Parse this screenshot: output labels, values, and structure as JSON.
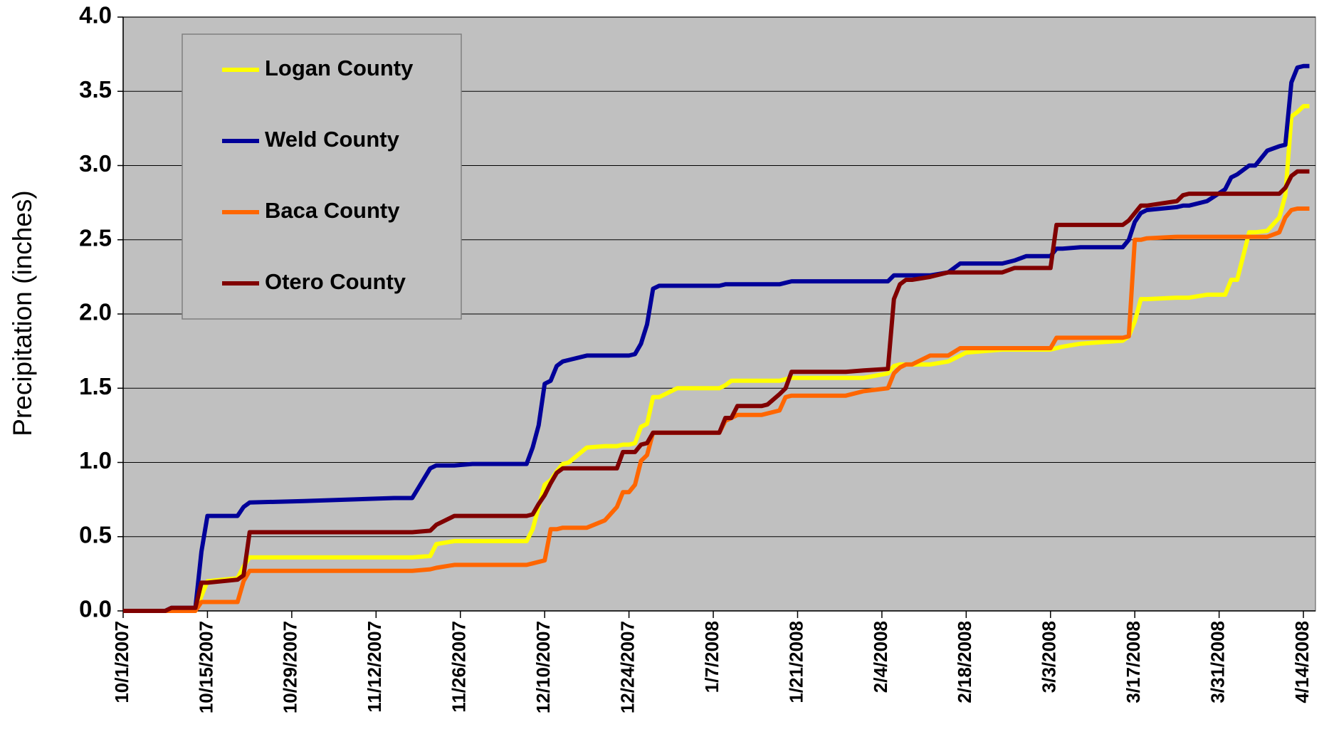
{
  "chart_data": {
    "type": "line",
    "ylabel": "Precipitation (inches)",
    "x": [
      "10/1/2007",
      "10/8/2007",
      "10/9/2007",
      "10/13/2007",
      "10/14/2007",
      "10/15/2007",
      "10/20/2007",
      "10/21/2007",
      "10/22/2007",
      "10/31/2007",
      "11/15/2007",
      "11/18/2007",
      "11/21/2007",
      "11/22/2007",
      "11/25/2007",
      "11/28/2007",
      "12/7/2007",
      "12/8/2007",
      "12/9/2007",
      "12/10/2007",
      "12/11/2007",
      "12/12/2007",
      "12/13/2007",
      "12/14/2007",
      "12/17/2007",
      "12/20/2007",
      "12/22/2007",
      "12/23/2007",
      "12/24/2007",
      "12/25/2007",
      "12/26/2007",
      "12/27/2007",
      "12/28/2007",
      "12/29/2007",
      "1/1/2008",
      "1/8/2008",
      "1/9/2008",
      "1/10/2008",
      "1/11/2008",
      "1/15/2008",
      "1/16/2008",
      "1/18/2008",
      "1/19/2008",
      "1/20/2008",
      "1/22/2008",
      "1/29/2008",
      "2/1/2008",
      "2/5/2008",
      "2/6/2008",
      "2/7/2008",
      "2/8/2008",
      "2/9/2008",
      "2/12/2008",
      "2/15/2008",
      "2/17/2008",
      "2/18/2008",
      "2/21/2008",
      "2/24/2008",
      "2/26/2008",
      "2/28/2008",
      "3/3/2008",
      "3/4/2008",
      "3/5/2008",
      "3/8/2008",
      "3/15/2008",
      "3/16/2008",
      "3/17/2008",
      "3/18/2008",
      "3/19/2008",
      "3/24/2008",
      "3/25/2008",
      "3/26/2008",
      "3/29/2008",
      "4/1/2008",
      "4/2/2008",
      "4/3/2008",
      "4/5/2008",
      "4/6/2008",
      "4/8/2008",
      "4/10/2008",
      "4/11/2008",
      "4/12/2008",
      "4/13/2008",
      "4/14/2008",
      "4/15/2008"
    ],
    "series": [
      {
        "name": "Logan County",
        "color": "#ffff00",
        "values": [
          0,
          0,
          0,
          0,
          0.1,
          0.2,
          0.22,
          0.3,
          0.36,
          0.36,
          0.36,
          0.36,
          0.37,
          0.45,
          0.47,
          0.47,
          0.47,
          0.55,
          0.7,
          0.85,
          0.88,
          0.94,
          0.99,
          1.0,
          1.1,
          1.11,
          1.11,
          1.12,
          1.12,
          1.13,
          1.24,
          1.26,
          1.44,
          1.44,
          1.5,
          1.5,
          1.52,
          1.55,
          1.55,
          1.55,
          1.55,
          1.55,
          1.56,
          1.57,
          1.57,
          1.57,
          1.57,
          1.6,
          1.65,
          1.66,
          1.66,
          1.66,
          1.66,
          1.68,
          1.72,
          1.74,
          1.75,
          1.76,
          1.76,
          1.76,
          1.76,
          1.77,
          1.78,
          1.8,
          1.82,
          1.85,
          1.95,
          2.1,
          2.1,
          2.11,
          2.11,
          2.11,
          2.13,
          2.13,
          2.23,
          2.23,
          2.55,
          2.55,
          2.56,
          2.65,
          2.8,
          3.33,
          3.36,
          3.4,
          3.4
        ]
      },
      {
        "name": "Weld County",
        "color": "#000099",
        "values": [
          0,
          0,
          0.02,
          0.02,
          0.4,
          0.64,
          0.64,
          0.7,
          0.73,
          0.74,
          0.76,
          0.76,
          0.96,
          0.98,
          0.98,
          0.99,
          0.99,
          1.1,
          1.25,
          1.53,
          1.55,
          1.65,
          1.68,
          1.69,
          1.72,
          1.72,
          1.72,
          1.72,
          1.72,
          1.73,
          1.8,
          1.93,
          2.17,
          2.19,
          2.19,
          2.19,
          2.2,
          2.2,
          2.2,
          2.2,
          2.2,
          2.2,
          2.21,
          2.22,
          2.22,
          2.22,
          2.22,
          2.22,
          2.26,
          2.26,
          2.26,
          2.26,
          2.26,
          2.28,
          2.34,
          2.34,
          2.34,
          2.34,
          2.36,
          2.39,
          2.39,
          2.44,
          2.44,
          2.45,
          2.45,
          2.5,
          2.62,
          2.68,
          2.7,
          2.72,
          2.73,
          2.73,
          2.76,
          2.84,
          2.92,
          2.94,
          3.0,
          3.0,
          3.1,
          3.13,
          3.14,
          3.56,
          3.66,
          3.67,
          3.67
        ]
      },
      {
        "name": "Baca County",
        "color": "#ff6600",
        "values": [
          0,
          0,
          0,
          0,
          0.06,
          0.06,
          0.06,
          0.2,
          0.27,
          0.27,
          0.27,
          0.27,
          0.28,
          0.29,
          0.31,
          0.31,
          0.31,
          0.32,
          0.33,
          0.34,
          0.55,
          0.55,
          0.56,
          0.56,
          0.56,
          0.61,
          0.7,
          0.8,
          0.8,
          0.85,
          1.01,
          1.05,
          1.2,
          1.2,
          1.2,
          1.2,
          1.28,
          1.3,
          1.32,
          1.32,
          1.33,
          1.35,
          1.44,
          1.45,
          1.45,
          1.45,
          1.48,
          1.5,
          1.6,
          1.64,
          1.66,
          1.66,
          1.72,
          1.72,
          1.77,
          1.77,
          1.77,
          1.77,
          1.77,
          1.77,
          1.77,
          1.84,
          1.84,
          1.84,
          1.84,
          1.85,
          2.5,
          2.5,
          2.51,
          2.52,
          2.52,
          2.52,
          2.52,
          2.52,
          2.52,
          2.52,
          2.52,
          2.52,
          2.52,
          2.55,
          2.65,
          2.7,
          2.71,
          2.71,
          2.71
        ]
      },
      {
        "name": "Otero County",
        "color": "#800000",
        "values": [
          0,
          0,
          0.02,
          0.02,
          0.19,
          0.19,
          0.21,
          0.24,
          0.53,
          0.53,
          0.53,
          0.53,
          0.54,
          0.58,
          0.64,
          0.64,
          0.64,
          0.65,
          0.72,
          0.78,
          0.86,
          0.93,
          0.96,
          0.96,
          0.96,
          0.96,
          0.96,
          1.07,
          1.07,
          1.07,
          1.12,
          1.13,
          1.2,
          1.2,
          1.2,
          1.2,
          1.3,
          1.3,
          1.38,
          1.38,
          1.39,
          1.46,
          1.5,
          1.61,
          1.61,
          1.61,
          1.62,
          1.63,
          2.1,
          2.2,
          2.23,
          2.23,
          2.25,
          2.28,
          2.28,
          2.28,
          2.28,
          2.28,
          2.31,
          2.31,
          2.31,
          2.6,
          2.6,
          2.6,
          2.6,
          2.63,
          2.68,
          2.73,
          2.73,
          2.76,
          2.8,
          2.81,
          2.81,
          2.81,
          2.81,
          2.81,
          2.81,
          2.81,
          2.81,
          2.81,
          2.85,
          2.93,
          2.96,
          2.96,
          2.96
        ]
      }
    ],
    "xlim": [
      "10/1/2007",
      "4/16/2008"
    ],
    "xticks": [
      "10/1/2007",
      "10/15/2007",
      "10/29/2007",
      "11/12/2007",
      "11/26/2007",
      "12/10/2007",
      "12/24/2007",
      "1/7/2008",
      "1/21/2008",
      "2/4/2008",
      "2/18/2008",
      "3/3/2008",
      "3/17/2008",
      "3/31/2008",
      "4/14/2008"
    ],
    "ylim": [
      0,
      4
    ],
    "yticks": [
      {
        "value": 0,
        "label": "0.0"
      },
      {
        "value": 0.5,
        "label": "0.5"
      },
      {
        "value": 1,
        "label": "1.0"
      },
      {
        "value": 1.5,
        "label": "1.5"
      },
      {
        "value": 2,
        "label": "2.0"
      },
      {
        "value": 2.5,
        "label": "2.5"
      },
      {
        "value": 3,
        "label": "3.0"
      },
      {
        "value": 3.5,
        "label": "3.5"
      },
      {
        "value": 4,
        "label": "4.0"
      }
    ],
    "grid": true,
    "legend": "top-left",
    "background": "#c0c0c0"
  }
}
